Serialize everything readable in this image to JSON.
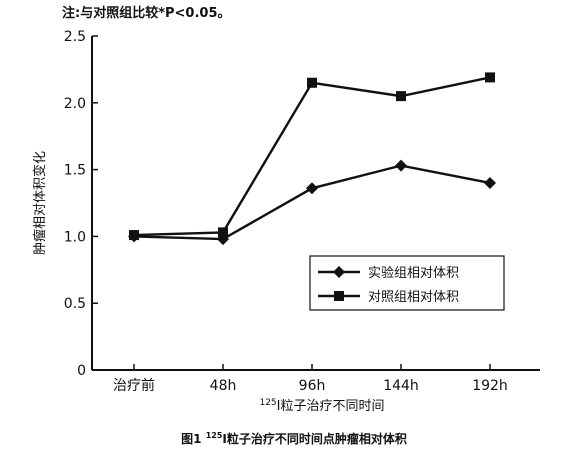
{
  "note": "注:与对照组比较*P<0.05。",
  "caption": {
    "fig_no": "图1",
    "sup": "125",
    "text": "I粒子治疗不同时间点肿瘤相对体积"
  },
  "chart_data": {
    "type": "line",
    "categories": [
      "治疗前",
      "48h",
      "96h",
      "144h",
      "192h"
    ],
    "xlabel_sup": "125",
    "xlabel": "I粒子治疗不同时间",
    "ylabel": "肿瘤相对体积变化",
    "ylim": [
      0,
      2.5
    ],
    "yticks": [
      "0",
      "0.5",
      "1.0",
      "1.5",
      "2.0",
      "2.5"
    ],
    "legend_position": "lower-right",
    "series": [
      {
        "name": "实验组相对体积",
        "marker": "diamond",
        "values": [
          1.0,
          0.98,
          1.36,
          1.53,
          1.4
        ]
      },
      {
        "name": "对照组相对体积",
        "marker": "square",
        "values": [
          1.01,
          1.03,
          2.15,
          2.05,
          2.19
        ]
      }
    ]
  }
}
